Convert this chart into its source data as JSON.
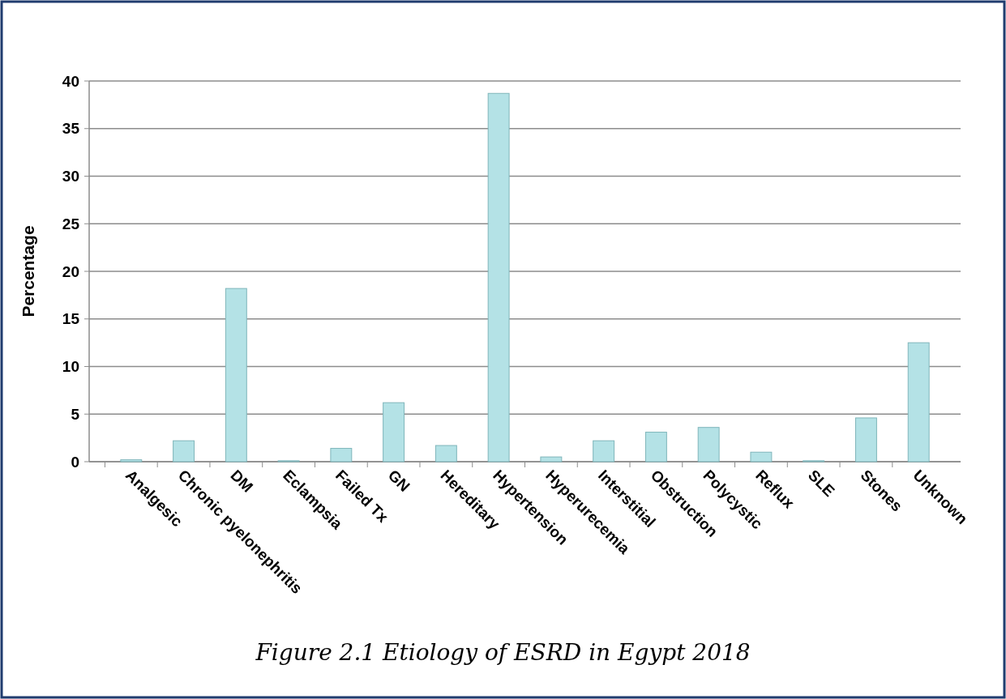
{
  "chart_data": {
    "type": "bar",
    "title": "Figure 2.1 Etiology of ESRD in Egypt 2018",
    "ylabel": "Percentage",
    "categories": [
      "Analgesic",
      "Chronic pyelonephritis",
      "DM",
      "Eclampsia",
      "Failed Tx",
      "GN",
      "Hereditary",
      "Hypertension",
      "Hyperurecemia",
      "Interstitial",
      "Obstruction",
      "Polycystic",
      "Reflux",
      "SLE",
      "Stones",
      "Unknown"
    ],
    "values": [
      0.2,
      2.2,
      18.2,
      0.1,
      1.4,
      6.2,
      1.7,
      38.7,
      0.5,
      2.2,
      3.1,
      3.6,
      1.0,
      0.1,
      4.6,
      12.5
    ],
    "color": "#b4e2e6",
    "ylim": [
      0,
      40
    ],
    "yticks": [
      0,
      5,
      10,
      15,
      20,
      25,
      30,
      35,
      40
    ],
    "grid": "y"
  }
}
